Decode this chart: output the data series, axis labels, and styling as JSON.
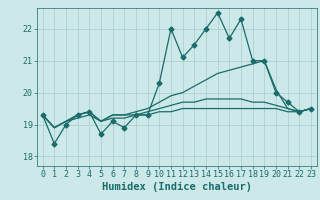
{
  "title": "",
  "xlabel": "Humidex (Indice chaleur)",
  "ylabel": "",
  "bg_color": "#cce8e8",
  "line_color": "#1a6b6b",
  "grid_color": "#aacccc",
  "x_ticks": [
    0,
    1,
    2,
    3,
    4,
    5,
    6,
    7,
    8,
    9,
    10,
    11,
    12,
    13,
    14,
    15,
    16,
    17,
    18,
    19,
    20,
    21,
    22,
    23
  ],
  "y_ticks": [
    18,
    19,
    20,
    21,
    22
  ],
  "xlim": [
    -0.5,
    23.5
  ],
  "ylim": [
    17.7,
    22.65
  ],
  "series": [
    [
      19.3,
      18.4,
      19.0,
      19.3,
      19.4,
      18.7,
      19.1,
      18.9,
      19.3,
      19.3,
      20.3,
      22.0,
      21.1,
      21.5,
      22.0,
      22.5,
      21.7,
      22.3,
      21.0,
      21.0,
      20.0,
      19.7,
      19.4,
      19.5
    ],
    [
      19.3,
      18.9,
      19.1,
      19.3,
      19.4,
      19.1,
      19.3,
      19.3,
      19.4,
      19.5,
      19.7,
      19.9,
      20.0,
      20.2,
      20.4,
      20.6,
      20.7,
      20.8,
      20.9,
      21.0,
      20.1,
      19.5,
      19.4,
      19.5
    ],
    [
      19.3,
      18.9,
      19.1,
      19.2,
      19.3,
      19.1,
      19.2,
      19.2,
      19.3,
      19.4,
      19.5,
      19.6,
      19.7,
      19.7,
      19.8,
      19.8,
      19.8,
      19.8,
      19.7,
      19.7,
      19.6,
      19.5,
      19.4,
      19.5
    ],
    [
      19.3,
      18.9,
      19.1,
      19.3,
      19.4,
      19.1,
      19.3,
      19.3,
      19.3,
      19.3,
      19.4,
      19.4,
      19.5,
      19.5,
      19.5,
      19.5,
      19.5,
      19.5,
      19.5,
      19.5,
      19.5,
      19.4,
      19.4,
      19.5
    ]
  ],
  "marker": "D",
  "marker_size": 2.5,
  "linewidth": 0.9,
  "tick_fontsize": 6.0,
  "xlabel_fontsize": 7.5
}
